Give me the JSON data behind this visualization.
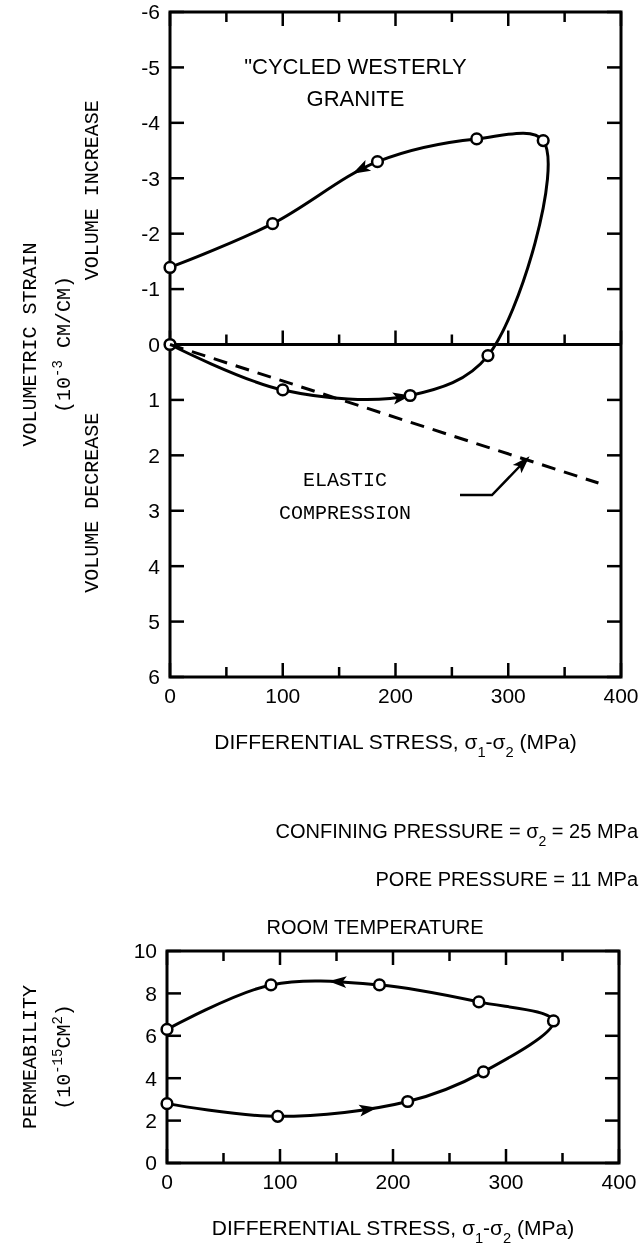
{
  "chart_data": [
    {
      "type": "line",
      "title": "\"CYCLED WESTERLY GRANITE",
      "xlabel": "DIFFERENTIAL STRESS, σ$_{1}$-σ$_{2}$ (MPa)",
      "ylabel": "VOLUMETRIC STRAIN (10$^{-3}$ CM/CM)",
      "xlim": [
        0,
        400
      ],
      "ylim": [
        6,
        -6
      ],
      "xticks": [
        0,
        {
          "value": 50,
          "label": null
        },
        100,
        {
          "value": 150,
          "label": null
        },
        200,
        {
          "value": 250,
          "label": null
        },
        300,
        {
          "value": 350,
          "label": null
        },
        400
      ],
      "yticks": [
        -6,
        -5,
        -4,
        -3,
        -2,
        -1,
        0,
        1,
        2,
        3,
        4,
        5,
        6
      ],
      "marker": "circle",
      "line_style": "solid",
      "ref_lines": [
        {
          "axis": "y",
          "value": 0
        }
      ],
      "annotations": [
        "VOLUME INCREASE",
        "VOLUME DECREASE",
        "ELASTIC COMPRESSION"
      ],
      "series": [
        {
          "color": "#000000",
          "x": [
            0,
            100,
            213,
            282,
            331,
            272,
            184,
            91,
            0
          ],
          "values": [
            0,
            0.82,
            0.92,
            0.2,
            -3.68,
            -3.71,
            -3.3,
            -2.18,
            -1.39
          ]
        },
        {
          "color": "#000000",
          "x": [
            0,
            380
          ],
          "values": [
            0,
            2.5
          ],
          "marker": "none",
          "line_style": "dashed"
        }
      ]
    },
    {
      "type": "line",
      "xlabel": "DIFFERENTIAL STRESS, σ$_{1}$-σ$_{2}$ (MPa)",
      "ylabel": "PERMEABILITY (10$^{-15}$CM$^{2}$)",
      "xlim": [
        0,
        400
      ],
      "ylim": [
        0,
        10
      ],
      "xticks": [
        0,
        {
          "value": 50,
          "label": null
        },
        100,
        {
          "value": 150,
          "label": null
        },
        200,
        {
          "value": 250,
          "label": null
        },
        300,
        {
          "value": 350,
          "label": null
        },
        400
      ],
      "yticks": [
        0,
        2,
        4,
        6,
        8,
        10
      ],
      "marker": "circle",
      "line_style": "solid",
      "annotations": [
        "CONFINING PRESSURE = σ$_{2}$ = 25 MPa",
        "PORE PRESSURE = 11 MPa",
        "ROOM TEMPERATURE"
      ],
      "series": [
        {
          "color": "#000000",
          "x": [
            0,
            98,
            213,
            280,
            342,
            276,
            188,
            92,
            0
          ],
          "values": [
            2.8,
            2.2,
            2.9,
            4.3,
            6.7,
            7.6,
            8.4,
            8.4,
            6.3
          ]
        }
      ]
    }
  ]
}
